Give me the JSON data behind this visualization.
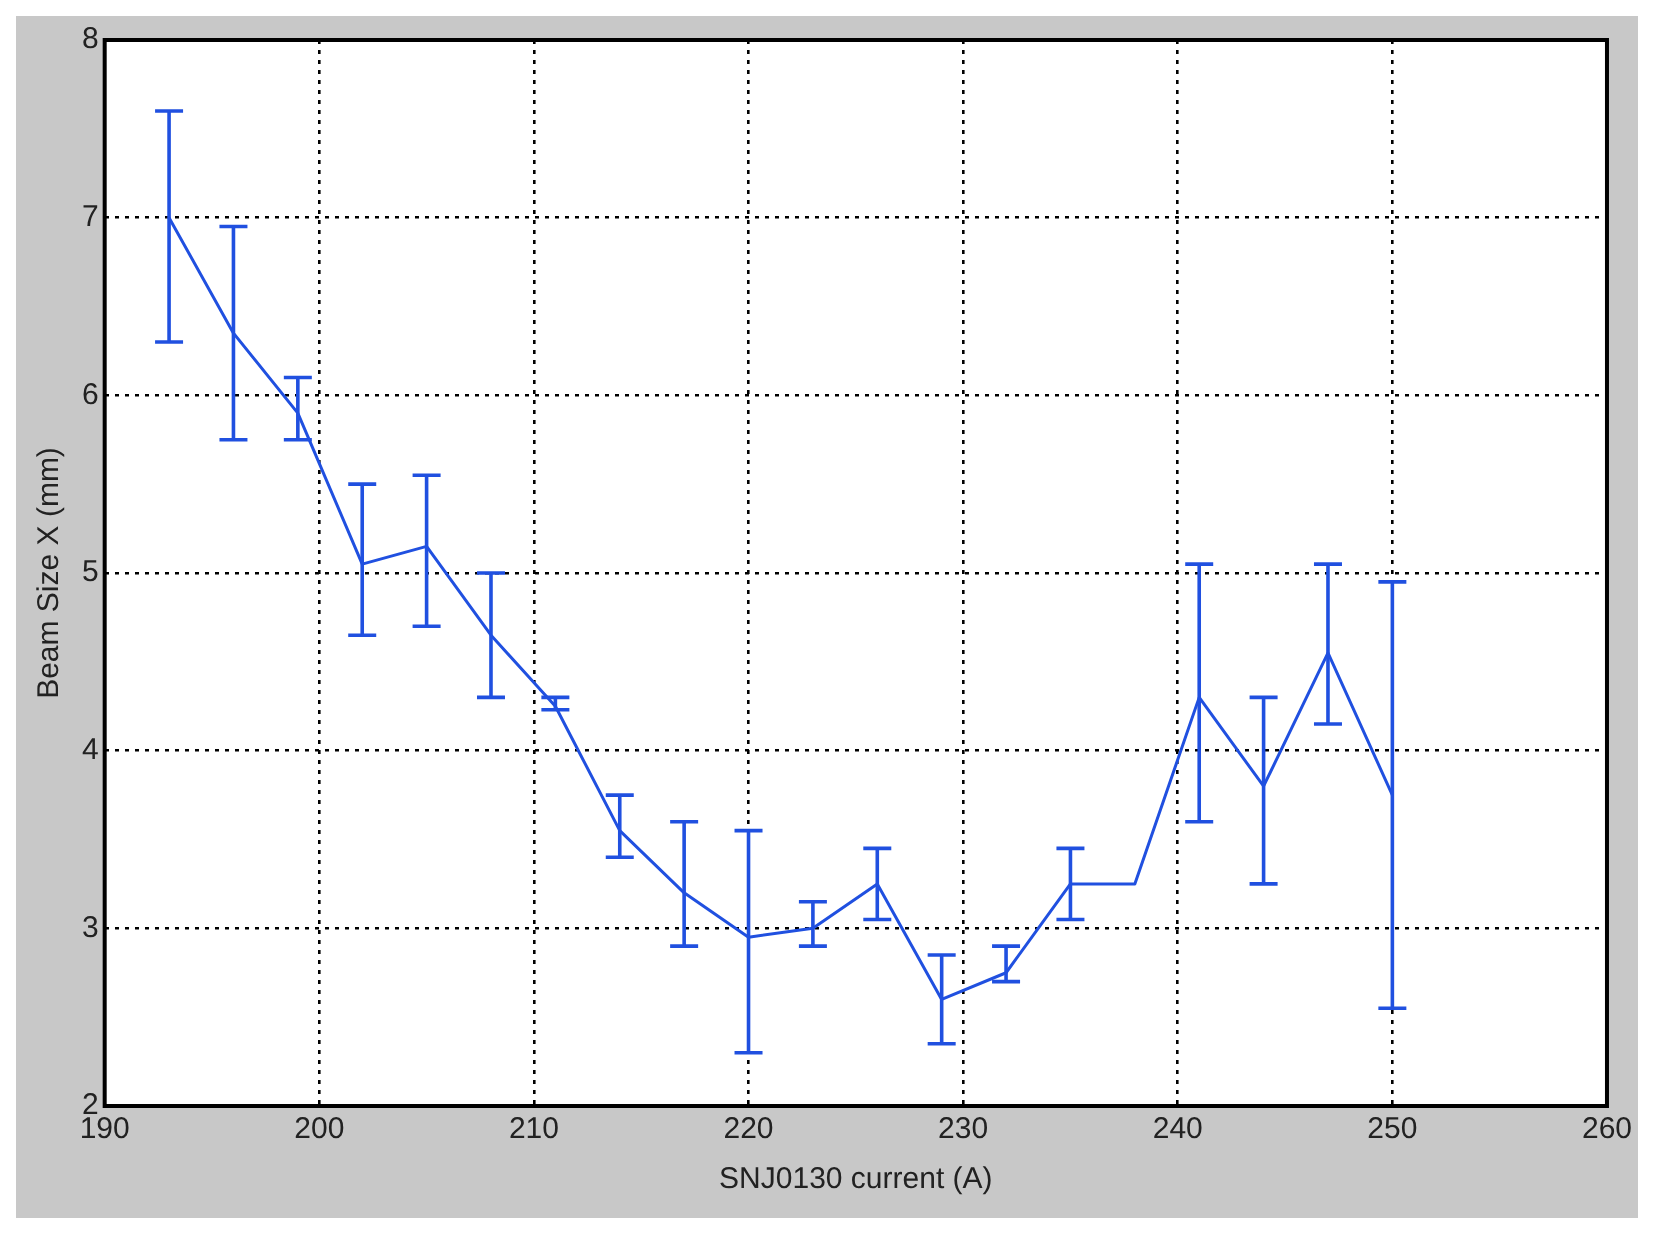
{
  "chart_data": {
    "type": "line",
    "xlabel": "SNJ0130 current (A)",
    "ylabel": "Beam Size X (mm)",
    "x": [
      193,
      196,
      199,
      202,
      205,
      208,
      211,
      214,
      217,
      220,
      223,
      226,
      229,
      232,
      235,
      238,
      241,
      244,
      247,
      250
    ],
    "series": [
      {
        "color": "#2050e0",
        "values": [
          7.0,
          6.35,
          5.9,
          5.05,
          5.15,
          4.65,
          4.25,
          3.55,
          3.2,
          2.95,
          3.0,
          3.25,
          2.6,
          2.75,
          3.25,
          3.25,
          4.3,
          3.8,
          4.55,
          3.75
        ],
        "errors": [
          [
            6.3,
            7.6
          ],
          [
            5.75,
            6.95
          ],
          [
            5.75,
            6.1
          ],
          [
            4.65,
            5.5
          ],
          [
            4.7,
            5.55
          ],
          [
            4.3,
            5.0
          ],
          [
            4.23,
            4.3
          ],
          [
            3.4,
            3.75
          ],
          [
            2.9,
            3.6
          ],
          [
            2.3,
            3.55
          ],
          [
            2.9,
            3.15
          ],
          [
            3.05,
            3.45
          ],
          [
            2.35,
            2.85
          ],
          [
            2.7,
            2.9
          ],
          [
            3.05,
            3.45
          ],
          null,
          [
            3.6,
            5.05
          ],
          [
            3.25,
            4.3
          ],
          [
            4.15,
            5.05
          ],
          [
            2.55,
            4.95
          ]
        ]
      }
    ],
    "xlim": [
      190,
      260
    ],
    "xticks": [
      190,
      200,
      210,
      220,
      230,
      240,
      250,
      260
    ],
    "ylim": [
      2,
      8
    ],
    "yticks": [
      2,
      3,
      4,
      5,
      6,
      7,
      8
    ],
    "grid": true,
    "marker": "none",
    "line_style": "solid",
    "legend": false
  }
}
